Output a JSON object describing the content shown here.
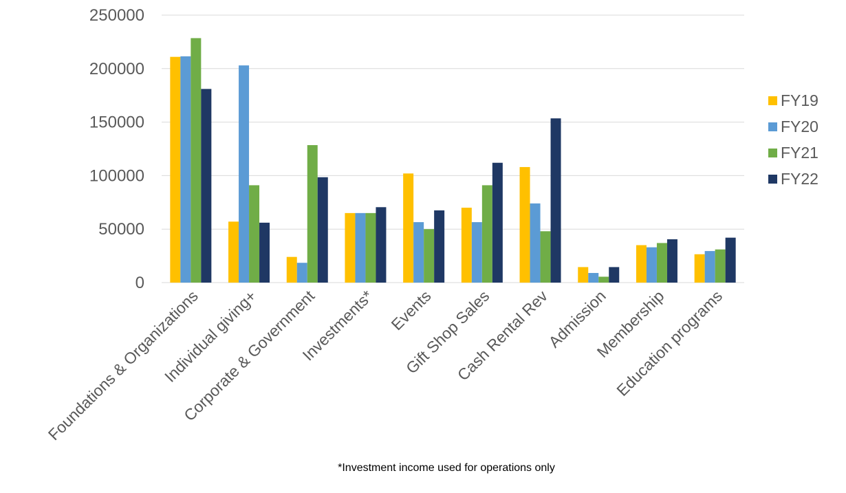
{
  "chart_data": {
    "type": "bar",
    "categories": [
      "Foundations & Organizations",
      "Individual giving+",
      "Corporate & Government",
      "Investments*",
      "Events",
      "Gift Shop Sales",
      "Cash Rental Rev",
      "Admission",
      "Membership",
      "Education programs"
    ],
    "series": [
      {
        "name": "FY19",
        "color": "#ffc000",
        "values": [
          211000,
          57000,
          24000,
          65000,
          102000,
          70000,
          108000,
          14500,
          35000,
          26500
        ]
      },
      {
        "name": "FY20",
        "color": "#5b9bd5",
        "values": [
          211500,
          203000,
          18500,
          65000,
          56500,
          56500,
          74000,
          9000,
          33000,
          29500
        ]
      },
      {
        "name": "FY21",
        "color": "#70ad47",
        "values": [
          228500,
          91000,
          128500,
          65000,
          50000,
          91000,
          48000,
          5500,
          37000,
          31000
        ]
      },
      {
        "name": "FY22",
        "color": "#1f3864",
        "values": [
          181000,
          56000,
          98500,
          70500,
          67500,
          112000,
          153500,
          14500,
          40500,
          42000
        ]
      }
    ],
    "yticks": [
      "0",
      "50000",
      "100000",
      "150000",
      "200000",
      "250000"
    ],
    "ylim": [
      0,
      250000
    ],
    "grid": true,
    "legend_position": "right",
    "footnote": "*Investment income used for operations only"
  }
}
